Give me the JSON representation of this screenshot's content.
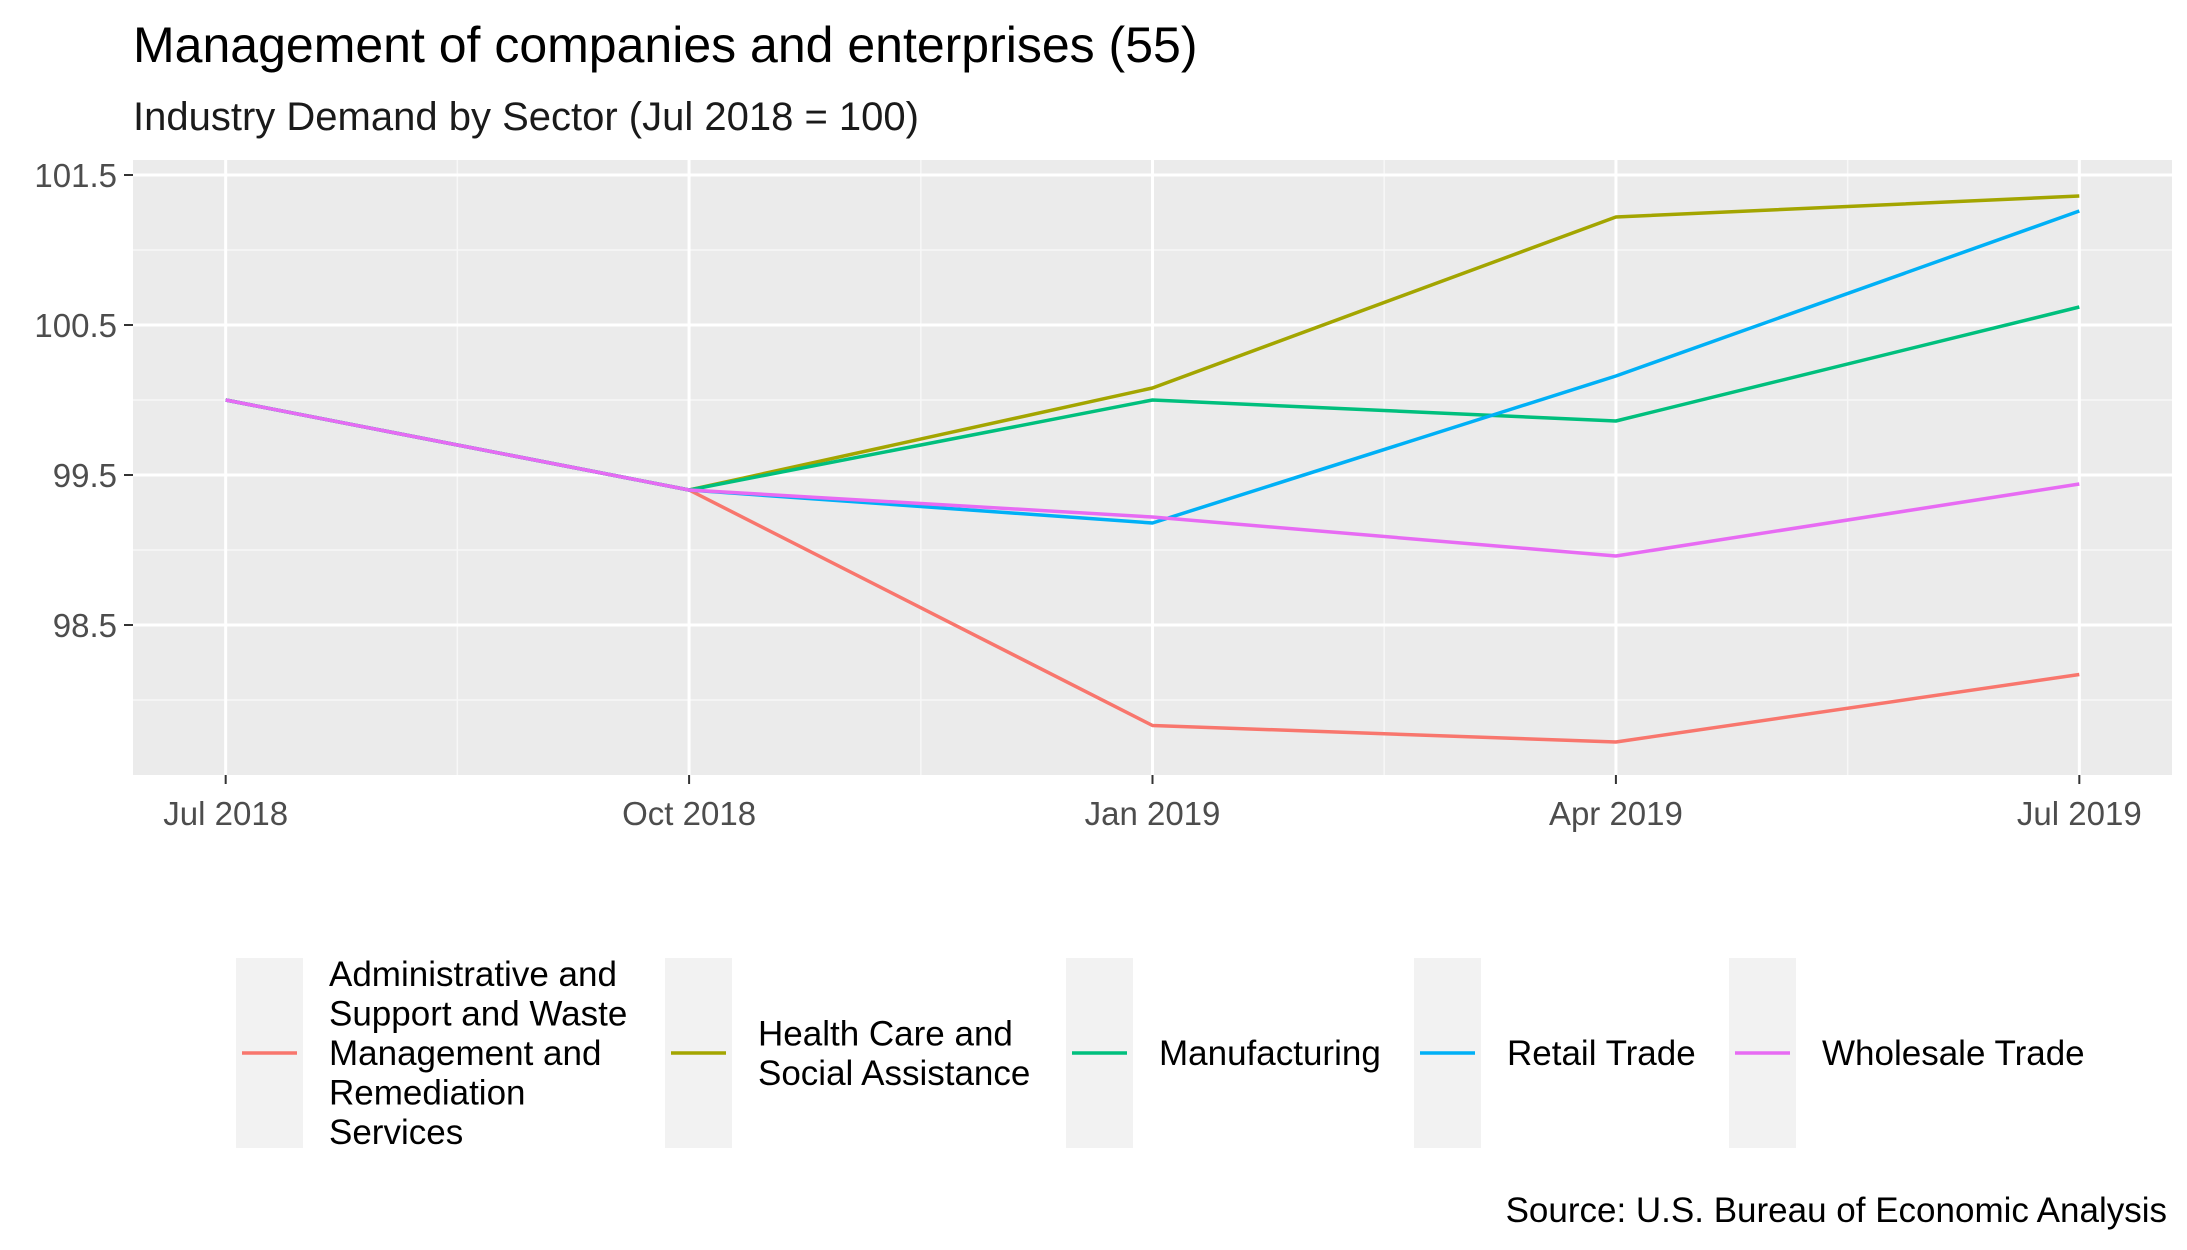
{
  "chart_data": {
    "type": "line",
    "title": "Management of companies and enterprises (55)",
    "subtitle": "Industry Demand by Sector (Jul 2018 = 100)",
    "caption": "Source: U.S. Bureau of Economic Analysis",
    "xlabel": "",
    "ylabel": "",
    "x": [
      "Jul 2018",
      "Oct 2018",
      "Jan 2019",
      "Apr 2019",
      "Jul 2019"
    ],
    "xlim": [
      -0.2,
      4.2
    ],
    "ylim": [
      97.5,
      101.6
    ],
    "y_ticks": [
      98.5,
      99.5,
      100.5,
      101.5
    ],
    "y_tick_labels": [
      "98.5",
      "99.5",
      "100.5",
      "101.5"
    ],
    "grid": true,
    "legend_position": "bottom",
    "series": [
      {
        "name": "Administrative and Support and Waste Management and Remediation Services",
        "legend_lines": [
          "Administrative and",
          "Support and Waste",
          "Management and",
          "Remediation",
          "Services"
        ],
        "color": "#F8766D",
        "values": [
          100.0,
          99.4,
          97.83,
          97.72,
          98.17
        ]
      },
      {
        "name": "Health Care and Social Assistance",
        "legend_lines": [
          "Health Care and",
          "Social Assistance"
        ],
        "color": "#A3A500",
        "values": [
          100.0,
          99.4,
          100.08,
          101.22,
          101.36
        ]
      },
      {
        "name": "Manufacturing",
        "legend_lines": [
          "Manufacturing"
        ],
        "color": "#00BF7D",
        "values": [
          100.0,
          99.4,
          100.0,
          99.86,
          100.62
        ]
      },
      {
        "name": "Retail Trade",
        "legend_lines": [
          "Retail Trade"
        ],
        "color": "#00B0F6",
        "values": [
          100.0,
          99.4,
          99.18,
          100.16,
          101.26
        ]
      },
      {
        "name": "Wholesale Trade",
        "legend_lines": [
          "Wholesale Trade"
        ],
        "color": "#E76BF3",
        "values": [
          100.0,
          99.4,
          99.22,
          98.96,
          99.44
        ]
      }
    ]
  }
}
